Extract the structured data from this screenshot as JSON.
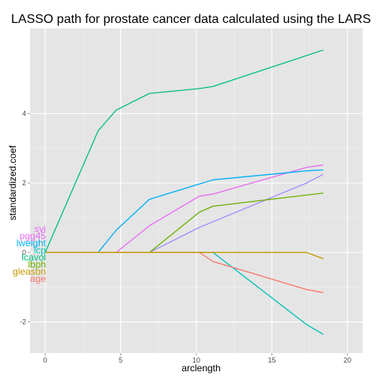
{
  "chart_data": {
    "type": "line",
    "title": "LASSO path for prostate cancer data calculated using the LARS",
    "xlabel": "arclength",
    "ylabel": "standardized.coef",
    "xlim": [
      -1,
      21
    ],
    "ylim": [
      -2.9,
      6.45
    ],
    "xticks": [
      0,
      5,
      10,
      15,
      20
    ],
    "xtick_labels": [
      "0",
      "5",
      "10",
      "15",
      "20"
    ],
    "yticks": [
      -2,
      0,
      2,
      4
    ],
    "ytick_labels": [
      "-2",
      "0",
      "2",
      "4"
    ],
    "grid": true,
    "legend": "none",
    "background": "#e5e5e5",
    "series": [
      {
        "name": "lcavol",
        "color": "#00BF7D",
        "points": [
          [
            0,
            0
          ],
          [
            3.5,
            3.5
          ],
          [
            4.7,
            4.1
          ],
          [
            6.9,
            4.58
          ],
          [
            10.2,
            4.72
          ],
          [
            11.1,
            4.78
          ],
          [
            18.4,
            5.83
          ]
        ]
      },
      {
        "name": "svi",
        "color": "#E76BF3",
        "points": [
          [
            0,
            0
          ],
          [
            4.7,
            0
          ],
          [
            6.9,
            0.77
          ],
          [
            10.2,
            1.62
          ],
          [
            11.1,
            1.68
          ],
          [
            17.3,
            2.45
          ],
          [
            18.4,
            2.52
          ]
        ]
      },
      {
        "name": "lweight",
        "color": "#00B0F6",
        "points": [
          [
            0,
            0
          ],
          [
            3.5,
            0
          ],
          [
            4.7,
            0.64
          ],
          [
            6.9,
            1.53
          ],
          [
            11.1,
            2.09
          ],
          [
            17.3,
            2.35
          ],
          [
            18.4,
            2.38
          ]
        ]
      },
      {
        "name": "pgg45",
        "color": "#A58AFF",
        "points": [
          [
            0,
            0
          ],
          [
            6.9,
            0
          ],
          [
            10.2,
            0.72
          ],
          [
            17.3,
            2.0
          ],
          [
            18.4,
            2.25
          ]
        ]
      },
      {
        "name": "lbph",
        "color": "#6BB100",
        "points": [
          [
            0,
            0
          ],
          [
            6.9,
            0
          ],
          [
            10.2,
            1.16
          ],
          [
            11.1,
            1.33
          ],
          [
            18.4,
            1.71
          ]
        ]
      },
      {
        "name": "lcp",
        "color": "#00C0B8",
        "points": [
          [
            0,
            0
          ],
          [
            11.1,
            0
          ],
          [
            17.3,
            -2.08
          ],
          [
            18.4,
            -2.36
          ]
        ]
      },
      {
        "name": "age",
        "color": "#F8766D",
        "points": [
          [
            0,
            0
          ],
          [
            10.2,
            0
          ],
          [
            11.1,
            -0.26
          ],
          [
            17.3,
            -1.07
          ],
          [
            18.4,
            -1.16
          ]
        ]
      },
      {
        "name": "gleason",
        "color": "#C49A00",
        "points": [
          [
            0,
            0
          ],
          [
            17.3,
            0
          ],
          [
            18.4,
            -0.18
          ]
        ]
      }
    ],
    "start_labels": [
      {
        "text": "svi",
        "color": "#E76BF3"
      },
      {
        "text": "pgg45",
        "color": "#E76BF3"
      },
      {
        "text": "lweight",
        "color": "#00B0F6"
      },
      {
        "text": "lcp",
        "color": "#00C0B8"
      },
      {
        "text": "lcavol",
        "color": "#00BF7D"
      },
      {
        "text": "lbph",
        "color": "#6BB100"
      },
      {
        "text": "gleason",
        "color": "#C49A00"
      },
      {
        "text": "age",
        "color": "#F8766D"
      }
    ]
  }
}
